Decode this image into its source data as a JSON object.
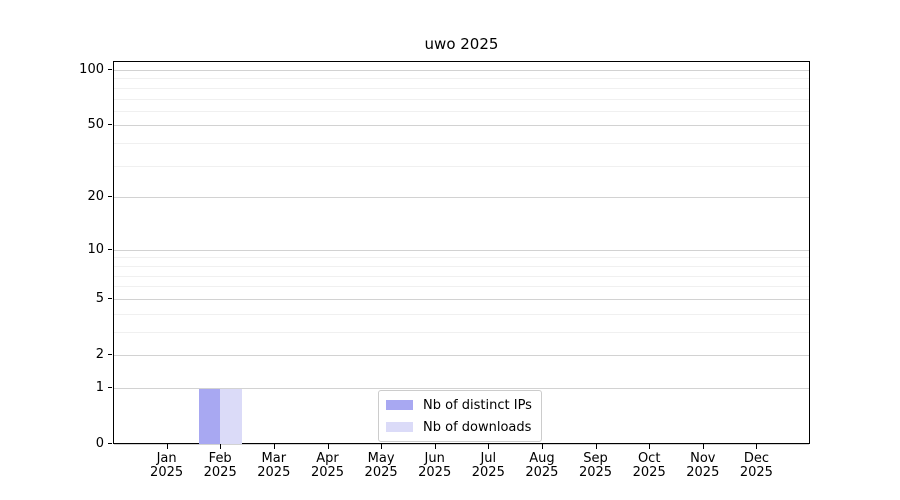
{
  "chart_data": {
    "type": "bar",
    "title": "uwo 2025",
    "categories": [
      "Jan 2025",
      "Feb 2025",
      "Mar 2025",
      "Apr 2025",
      "May 2025",
      "Jun 2025",
      "Jul 2025",
      "Aug 2025",
      "Sep 2025",
      "Oct 2025",
      "Nov 2025",
      "Dec 2025"
    ],
    "series": [
      {
        "name": "Nb of distinct IPs",
        "color": "#a8a8f2",
        "values": [
          0,
          1,
          0,
          0,
          0,
          0,
          0,
          0,
          0,
          0,
          0,
          0
        ]
      },
      {
        "name": "Nb of downloads",
        "color": "#dbdbf8",
        "values": [
          0,
          1,
          0,
          0,
          0,
          0,
          0,
          0,
          0,
          0,
          0,
          0
        ]
      }
    ],
    "xlabel": "",
    "ylabel": "",
    "y_scale": "log10(1+y)",
    "y_major_ticks": [
      0,
      1,
      2,
      5,
      10,
      20,
      50,
      100
    ],
    "y_minor_ticks": [
      3,
      4,
      6,
      7,
      8,
      9,
      30,
      40,
      60,
      70,
      80,
      90
    ],
    "ylim": [
      0,
      112
    ],
    "grid": true,
    "legend_position": "lower center",
    "colors": {
      "major_grid": "#d2d2d2",
      "minor_grid": "#f0f0f0",
      "axis": "#000000",
      "legend_border": "#cccccc"
    }
  }
}
